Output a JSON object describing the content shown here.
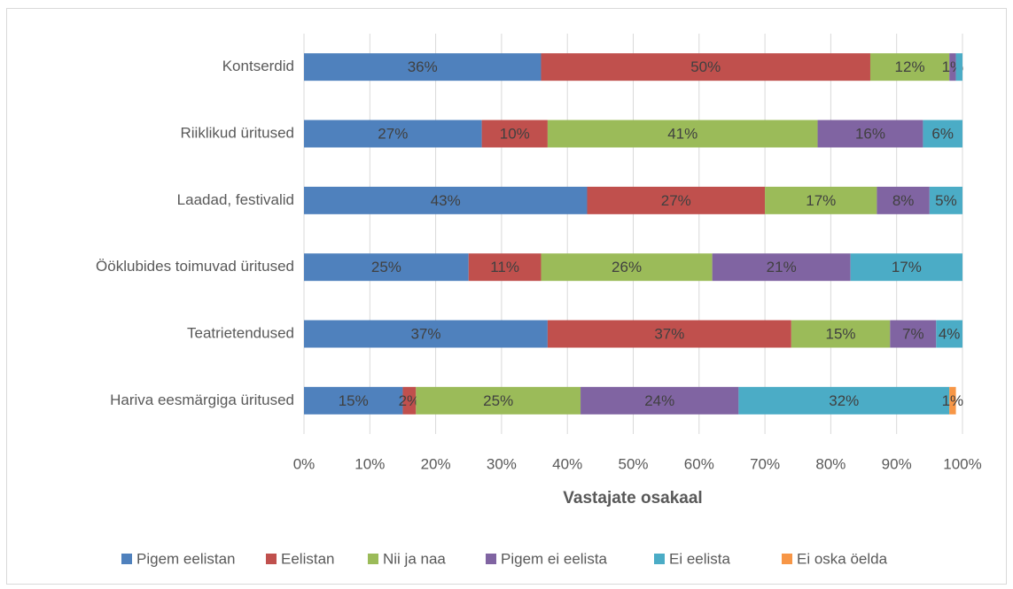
{
  "chart_data": {
    "type": "stacked_barh",
    "categories": [
      "Kontserdid",
      "Riiklikud üritused",
      "Laadad, festivalid",
      "Ööklubides toimuvad üritused",
      "Teatrietendused",
      "Hariva eesmärgiga üritused"
    ],
    "series": [
      {
        "name": "Pigem eelistan",
        "color": "#4f81bd",
        "values": [
          36,
          27,
          43,
          25,
          37,
          15
        ],
        "value_labels": [
          "36%",
          "27%",
          "43%",
          "25%",
          "37%",
          "15%"
        ]
      },
      {
        "name": "Eelistan",
        "color": "#c0504d",
        "values": [
          50,
          10,
          27,
          11,
          37,
          2
        ],
        "value_labels": [
          "50%",
          "10%",
          "27%",
          "11%",
          "37%",
          "2%"
        ]
      },
      {
        "name": "Nii ja naa",
        "color": "#9bbb59",
        "values": [
          12,
          41,
          17,
          26,
          15,
          25
        ],
        "value_labels": [
          "12%",
          "41%",
          "17%",
          "26%",
          "15%",
          "25%"
        ]
      },
      {
        "name": "Pigem ei eelista",
        "color": "#8064a2",
        "values": [
          1,
          16,
          8,
          21,
          7,
          24
        ],
        "value_labels": [
          "1%",
          "16%",
          "8%",
          "21%",
          "7%",
          "24%"
        ]
      },
      {
        "name": "Ei eelista",
        "color": "#4bacc6",
        "values": [
          1,
          6,
          5,
          17,
          4,
          32
        ],
        "value_labels": [
          null,
          "6%",
          "5%",
          "17%",
          "4%",
          "32%"
        ]
      },
      {
        "name": "Ei oska öelda",
        "color": "#f79646",
        "values": [
          0,
          0,
          0,
          0,
          0,
          1
        ],
        "value_labels": [
          null,
          null,
          null,
          null,
          null,
          "1%"
        ]
      }
    ],
    "xlabel": "Vastajate osakaal",
    "xlim": [
      0,
      100
    ],
    "xticks": [
      {
        "value": 0,
        "label": "0%"
      },
      {
        "value": 10,
        "label": "10%"
      },
      {
        "value": 20,
        "label": "20%"
      },
      {
        "value": 30,
        "label": "30%"
      },
      {
        "value": 40,
        "label": "40%"
      },
      {
        "value": 50,
        "label": "50%"
      },
      {
        "value": 60,
        "label": "60%"
      },
      {
        "value": 70,
        "label": "70%"
      },
      {
        "value": 80,
        "label": "80%"
      },
      {
        "value": 90,
        "label": "90%"
      },
      {
        "value": 100,
        "label": "100%"
      }
    ],
    "grid": true,
    "legend": "bottom"
  }
}
